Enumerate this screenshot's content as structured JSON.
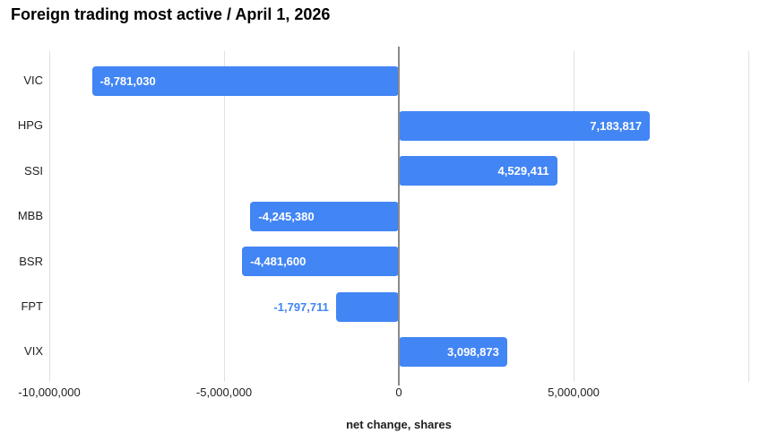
{
  "title": "Foreign trading most active / April 1, 2026",
  "chart_data": {
    "type": "bar",
    "orientation": "horizontal",
    "title": "Foreign trading most active / April 1, 2026",
    "xlabel": "net change, shares",
    "categories": [
      "VIC",
      "HPG",
      "SSI",
      "MBB",
      "BSR",
      "FPT",
      "VIX"
    ],
    "values": [
      -8781030,
      7183817,
      4529411,
      -4245380,
      -4481600,
      -1797711,
      3098873
    ],
    "value_labels": [
      "-8,781,030",
      "7,183,817",
      "4,529,411",
      "-4,245,380",
      "-4,481,600",
      "-1,797,711",
      "3,098,873"
    ],
    "xlim": [
      -10000000,
      10000000
    ],
    "x_ticks": [
      {
        "value": -10000000,
        "label": "-10,000,000"
      },
      {
        "value": -5000000,
        "label": "-5,000,000"
      },
      {
        "value": 0,
        "label": "0"
      },
      {
        "value": 5000000,
        "label": "5,000,000"
      },
      {
        "value": 10000000,
        "label": ""
      }
    ],
    "grid": true,
    "legend": "none",
    "colors": {
      "bar": "#4285f4",
      "value_label_inside": "#ffffff",
      "value_label_outside": "#4285f4",
      "gridline": "#e0e0e0",
      "zero_line": "#8a8a8a",
      "axis_text": "#212121",
      "title_text": "#000000"
    }
  }
}
